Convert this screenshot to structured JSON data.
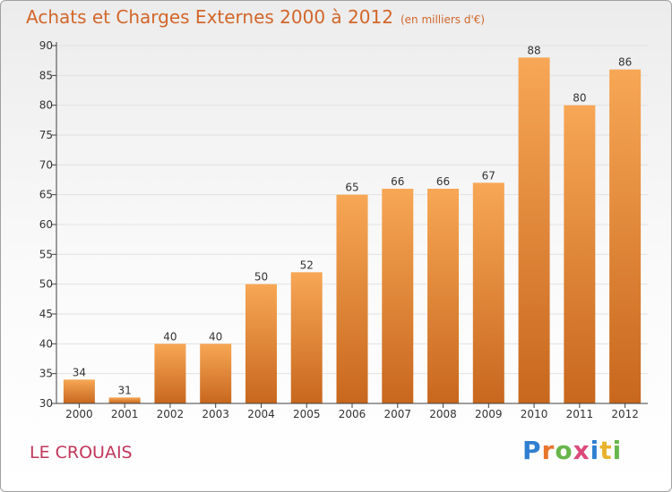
{
  "header": {
    "title": "Achats et Charges Externes 2000 à 2012",
    "subtitle": "(en milliers d'€)"
  },
  "footer": {
    "commune": "LE CROUAIS",
    "brand": [
      "P",
      "r",
      "o",
      "x",
      "i",
      "t",
      "i"
    ],
    "brand_colors": [
      "#2f7fd0",
      "#e8762c",
      "#67b64c",
      "#d94a7a",
      "#2f7fd0",
      "#e8b22c",
      "#67b64c"
    ]
  },
  "colors": {
    "bar_light": "#f7a755",
    "bar_dark": "#c8671e",
    "axis": "#404040",
    "grid": "#e2e2e2",
    "text": "#333333"
  },
  "chart_data": {
    "type": "bar",
    "title": "Achats et Charges Externes 2000 à 2012",
    "subtitle": "(en milliers d'€)",
    "xlabel": "",
    "ylabel": "",
    "categories": [
      "2000",
      "2001",
      "2002",
      "2003",
      "2004",
      "2005",
      "2006",
      "2007",
      "2008",
      "2009",
      "2010",
      "2011",
      "2012"
    ],
    "values": [
      34,
      31,
      40,
      40,
      50,
      52,
      65,
      66,
      66,
      67,
      88,
      80,
      86
    ],
    "ylim": [
      30,
      90
    ],
    "yticks": [
      30,
      35,
      40,
      45,
      50,
      55,
      60,
      65,
      70,
      75,
      80,
      85,
      90
    ],
    "grid": true
  }
}
